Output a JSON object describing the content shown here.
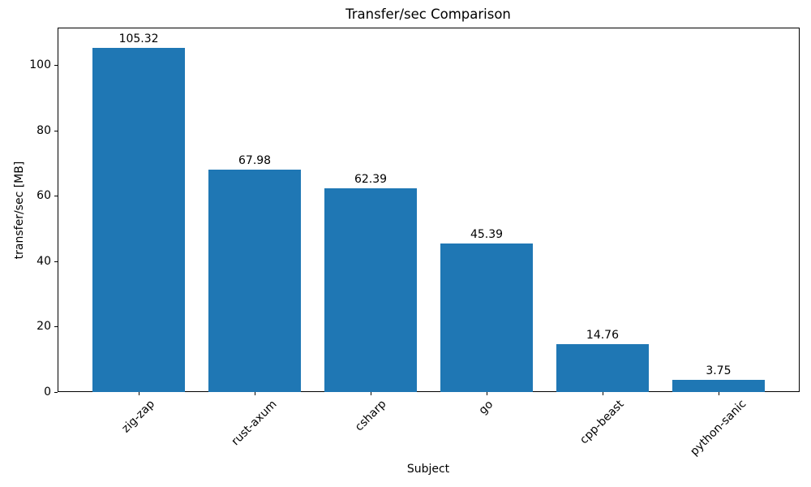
{
  "chart_data": {
    "type": "bar",
    "title": "Transfer/sec Comparison",
    "xlabel": "Subject",
    "ylabel": "transfer/sec [MB]",
    "categories": [
      "zig-zap",
      "rust-axum",
      "csharp",
      "go",
      "cpp-beast",
      "python-sanic"
    ],
    "values": [
      105.32,
      67.98,
      62.39,
      45.39,
      14.76,
      3.75
    ],
    "value_labels": [
      "105.32",
      "67.98",
      "62.39",
      "45.39",
      "14.76",
      "3.75"
    ],
    "yticks": [
      0,
      20,
      40,
      60,
      80,
      100
    ],
    "ylim": [
      0,
      111.4
    ],
    "xtick_rotation_deg": 45,
    "grid": false,
    "legend": false,
    "bar_color": "#1f77b4",
    "text_color": "#000000",
    "background_color": "#ffffff"
  }
}
